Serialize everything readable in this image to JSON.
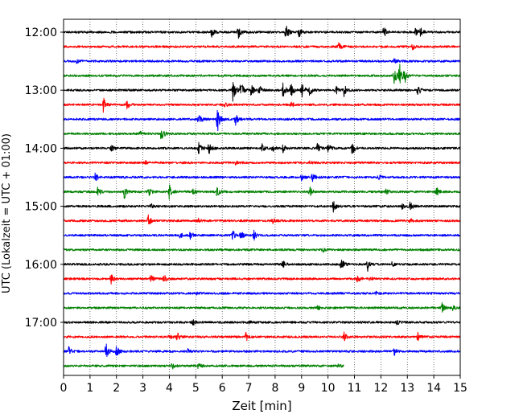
{
  "chart_data": {
    "type": "line",
    "title": "",
    "xlabel": "Zeit  [min]",
    "ylabel": "UTC (Lokalzeit = UTC + 01:00)",
    "xlim": [
      0,
      15
    ],
    "x_ticks": [
      "0",
      "1",
      "2",
      "3",
      "4",
      "5",
      "6",
      "7",
      "8",
      "9",
      "10",
      "11",
      "12",
      "13",
      "14",
      "15"
    ],
    "y_tick_labels": [
      "12:00",
      "13:00",
      "14:00",
      "15:00",
      "16:00",
      "17:00"
    ],
    "grid": "vertical dotted",
    "trace_interval_minutes": 15,
    "colors": [
      "#000000",
      "#ff0000",
      "#0000ff",
      "#008000"
    ],
    "series": [
      {
        "start": "12:00",
        "color": "#000000",
        "end_min": 15,
        "events": [
          [
            5.6,
            6
          ],
          [
            6.6,
            10
          ],
          [
            8.4,
            12
          ],
          [
            8.9,
            6
          ],
          [
            12.1,
            7
          ],
          [
            13.3,
            5
          ],
          [
            13.5,
            5
          ]
        ]
      },
      {
        "start": "12:15",
        "color": "#ff0000",
        "end_min": 15,
        "events": [
          [
            10.4,
            5
          ],
          [
            13.2,
            3
          ]
        ]
      },
      {
        "start": "12:30",
        "color": "#0000ff",
        "end_min": 15,
        "events": [
          [
            0.5,
            2
          ],
          [
            12.5,
            3
          ]
        ]
      },
      {
        "start": "12:45",
        "color": "#008000",
        "end_min": 15,
        "events": [
          [
            12.5,
            12
          ],
          [
            12.7,
            16
          ],
          [
            12.9,
            8
          ]
        ]
      },
      {
        "start": "13:00",
        "color": "#000000",
        "end_min": 15,
        "events": [
          [
            6.4,
            14
          ],
          [
            6.7,
            12
          ],
          [
            7.1,
            8
          ],
          [
            7.4,
            7
          ],
          [
            8.3,
            10
          ],
          [
            8.6,
            9
          ],
          [
            9.0,
            12
          ],
          [
            9.3,
            7
          ],
          [
            10.3,
            5
          ],
          [
            10.6,
            8
          ],
          [
            13.4,
            7
          ]
        ]
      },
      {
        "start": "13:15",
        "color": "#ff0000",
        "end_min": 15,
        "events": [
          [
            1.5,
            10
          ],
          [
            2.4,
            5
          ],
          [
            6.1,
            3
          ],
          [
            8.6,
            4
          ]
        ]
      },
      {
        "start": "13:30",
        "color": "#0000ff",
        "end_min": 15,
        "events": [
          [
            5.1,
            9
          ],
          [
            5.8,
            22
          ],
          [
            6.5,
            7
          ]
        ]
      },
      {
        "start": "13:45",
        "color": "#008000",
        "end_min": 15,
        "events": [
          [
            3.7,
            11
          ],
          [
            2.9,
            3
          ]
        ]
      },
      {
        "start": "14:00",
        "color": "#000000",
        "end_min": 15,
        "events": [
          [
            1.8,
            4
          ],
          [
            5.1,
            7
          ],
          [
            5.5,
            7
          ],
          [
            7.5,
            5
          ],
          [
            7.9,
            5
          ],
          [
            8.3,
            5
          ],
          [
            9.6,
            6
          ],
          [
            10.0,
            6
          ],
          [
            10.9,
            10
          ]
        ]
      },
      {
        "start": "14:15",
        "color": "#ff0000",
        "end_min": 15,
        "events": [
          [
            3.1,
            2
          ],
          [
            6.5,
            2
          ],
          [
            9.3,
            2
          ]
        ]
      },
      {
        "start": "14:30",
        "color": "#0000ff",
        "end_min": 15,
        "events": [
          [
            1.2,
            5
          ],
          [
            9.0,
            5
          ],
          [
            9.4,
            6
          ],
          [
            11.9,
            3
          ]
        ]
      },
      {
        "start": "14:45",
        "color": "#008000",
        "end_min": 15,
        "events": [
          [
            1.3,
            7
          ],
          [
            2.3,
            9
          ],
          [
            3.2,
            7
          ],
          [
            4.0,
            10
          ],
          [
            4.9,
            5
          ],
          [
            5.8,
            6
          ],
          [
            9.3,
            7
          ],
          [
            14.1,
            6
          ],
          [
            12.2,
            3
          ]
        ]
      },
      {
        "start": "15:00",
        "color": "#000000",
        "end_min": 15,
        "events": [
          [
            3.3,
            3
          ],
          [
            10.2,
            7
          ],
          [
            13.1,
            6
          ],
          [
            12.8,
            3
          ]
        ]
      },
      {
        "start": "15:15",
        "color": "#ff0000",
        "end_min": 15,
        "events": [
          [
            3.2,
            7
          ],
          [
            5.1,
            3
          ],
          [
            7.9,
            3
          ],
          [
            13.1,
            3
          ]
        ]
      },
      {
        "start": "15:30",
        "color": "#0000ff",
        "end_min": 15,
        "events": [
          [
            4.4,
            4
          ],
          [
            4.8,
            6
          ],
          [
            6.4,
            6
          ],
          [
            6.7,
            5
          ],
          [
            7.2,
            6
          ]
        ]
      },
      {
        "start": "15:45",
        "color": "#008000",
        "end_min": 15,
        "events": [
          [
            9.8,
            3
          ]
        ]
      },
      {
        "start": "16:00",
        "color": "#000000",
        "end_min": 15,
        "events": [
          [
            8.3,
            4
          ],
          [
            10.5,
            11
          ],
          [
            11.5,
            8
          ],
          [
            12.4,
            3
          ]
        ]
      },
      {
        "start": "16:15",
        "color": "#ff0000",
        "end_min": 15,
        "events": [
          [
            1.8,
            8
          ],
          [
            3.3,
            5
          ],
          [
            3.8,
            5
          ],
          [
            11.1,
            6
          ],
          [
            11.6,
            4
          ]
        ]
      },
      {
        "start": "16:30",
        "color": "#0000ff",
        "end_min": 15,
        "events": [
          [
            5.0,
            2
          ],
          [
            11.8,
            2
          ]
        ]
      },
      {
        "start": "16:45",
        "color": "#008000",
        "end_min": 15,
        "events": [
          [
            9.6,
            3
          ],
          [
            14.3,
            6
          ],
          [
            14.7,
            4
          ]
        ]
      },
      {
        "start": "17:00",
        "color": "#000000",
        "end_min": 15,
        "events": [
          [
            4.9,
            4
          ],
          [
            7.0,
            3
          ],
          [
            12.6,
            3
          ]
        ]
      },
      {
        "start": "17:15",
        "color": "#ff0000",
        "end_min": 15,
        "events": [
          [
            4.3,
            6
          ],
          [
            6.9,
            6
          ],
          [
            10.6,
            6
          ],
          [
            13.4,
            6
          ],
          [
            4.0,
            3
          ]
        ]
      },
      {
        "start": "17:30",
        "color": "#0000ff",
        "end_min": 15,
        "events": [
          [
            0.2,
            6
          ],
          [
            1.6,
            10
          ],
          [
            2.0,
            8
          ],
          [
            4.7,
            3
          ],
          [
            12.5,
            5
          ]
        ]
      },
      {
        "start": "17:45",
        "color": "#008000",
        "end_min": 10.6,
        "events": [
          [
            4.1,
            4
          ],
          [
            5.1,
            4
          ],
          [
            10.4,
            2
          ]
        ]
      }
    ]
  }
}
